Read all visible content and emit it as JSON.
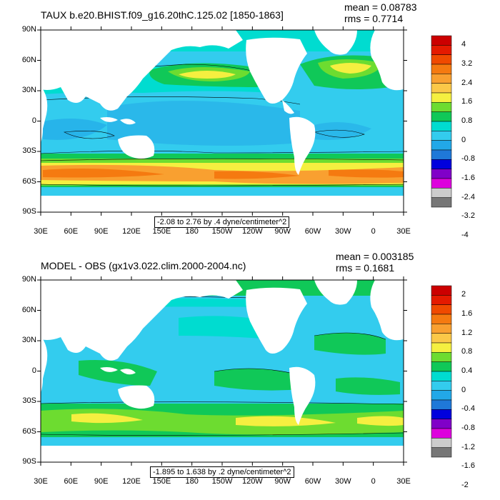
{
  "panels": [
    {
      "title": "TAUX b.e20.BHIST.f09_g16.20thC.125.02 [1850-1863]",
      "mean": "mean = 0.08783",
      "rms": "rms = 0.7714",
      "range_label": "-2.08 to 2.76 by .4 dyne/centimeter^2",
      "colorbar_labels": [
        "4",
        "3.2",
        "2.4",
        "1.6",
        "0.8",
        "0",
        "-0.8",
        "-1.6",
        "-2.4",
        "-3.2",
        "-4"
      ],
      "colorbar_colors": [
        "#cc0000",
        "#e51a00",
        "#f04a00",
        "#f57a10",
        "#f9a030",
        "#fbc848",
        "#f5ef40",
        "#6ddc30",
        "#10c858",
        "#00dcd0",
        "#33ccee",
        "#22a8e8",
        "#1f78d8",
        "#0000dd",
        "#8000c8",
        "#dd00dd",
        "#cccccc",
        "#777777"
      ]
    },
    {
      "title": "MODEL - OBS (gx1v3.022.clim.2000-2004.nc)",
      "mean": "mean = 0.003185",
      "rms": "rms = 0.1681",
      "range_label": "-1.895 to 1.638 by .2 dyne/centimeter^2",
      "colorbar_labels": [
        "2",
        "1.6",
        "1.2",
        "0.8",
        "0.4",
        "0",
        "-0.4",
        "-0.8",
        "-1.2",
        "-1.6",
        "-2"
      ],
      "colorbar_colors": [
        "#cc0000",
        "#e51a00",
        "#f04a00",
        "#f57a10",
        "#f9a030",
        "#fbc848",
        "#f5ef40",
        "#6ddc30",
        "#10c858",
        "#00dcd0",
        "#33ccee",
        "#22a8e8",
        "#1f78d8",
        "#0000dd",
        "#8000c8",
        "#dd00dd",
        "#cccccc",
        "#777777"
      ]
    }
  ],
  "lat_labels": [
    "90N",
    "60N",
    "30N",
    "0",
    "30S",
    "60S",
    "90S"
  ],
  "lon_labels": [
    "30E",
    "60E",
    "90E",
    "120E",
    "150E",
    "180",
    "150W",
    "120W",
    "90W",
    "60W",
    "30W",
    "0",
    "30E"
  ],
  "colors": {
    "ocean_cyan": "#33ccee",
    "ocean_aqua": "#00dcd0",
    "green": "#10c858",
    "lightgreen": "#6ddc30",
    "yellow": "#f5ef40",
    "orange": "#f9a030",
    "darkorange": "#f57a10",
    "blue": "#22a8e8",
    "land": "#ffffff"
  }
}
